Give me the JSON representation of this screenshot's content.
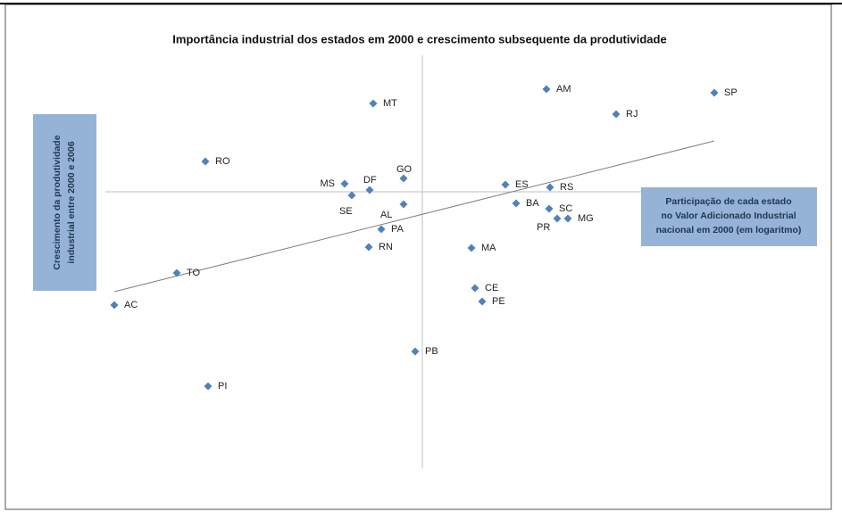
{
  "chart_data": {
    "type": "scatter",
    "title": "Importância industrial dos estados em 2000 e crescimento subsequente da produtividade",
    "x_label": [
      "Participação de cada estado",
      "no Valor Adicionado Industrial",
      "nacional em 2000 (em logaritmo)"
    ],
    "y_label": [
      "Crescimento da produtividade",
      "industrial entre 2000 e 2006"
    ],
    "labels": [
      "AM",
      "SP",
      "RJ",
      "MT",
      "RO",
      "GO",
      "MS",
      "DF",
      "SE",
      "ES",
      "RS",
      "AL",
      "BA",
      "SC",
      "PR",
      "MG",
      "PA",
      "RN",
      "MA",
      "TO",
      "CE",
      "PE",
      "AC",
      "PB",
      "PI"
    ],
    "x": [
      1.39,
      3.27,
      2.17,
      -0.55,
      -2.43,
      -0.21,
      -0.87,
      -0.59,
      -0.79,
      0.93,
      1.43,
      -0.21,
      1.05,
      1.42,
      1.51,
      1.63,
      -0.46,
      -0.6,
      0.55,
      -2.75,
      0.59,
      0.67,
      -3.45,
      -0.08,
      -2.4
    ],
    "y": [
      1.15,
      1.11,
      0.87,
      0.99,
      0.34,
      0.15,
      0.09,
      0.02,
      -0.04,
      0.08,
      0.05,
      -0.14,
      -0.13,
      -0.19,
      -0.3,
      -0.3,
      -0.42,
      -0.62,
      -0.63,
      -0.91,
      -1.08,
      -1.23,
      -1.27,
      -1.79,
      -2.18
    ],
    "color": "#4f81bd",
    "trend_line": {
      "x": [
        -3.45,
        3.27
      ],
      "y": [
        -1.12,
        0.57
      ],
      "color": "#808080"
    },
    "xlim": [
      -3.73,
      3.57
    ],
    "ylim": [
      -3.1,
      1.53
    ]
  }
}
